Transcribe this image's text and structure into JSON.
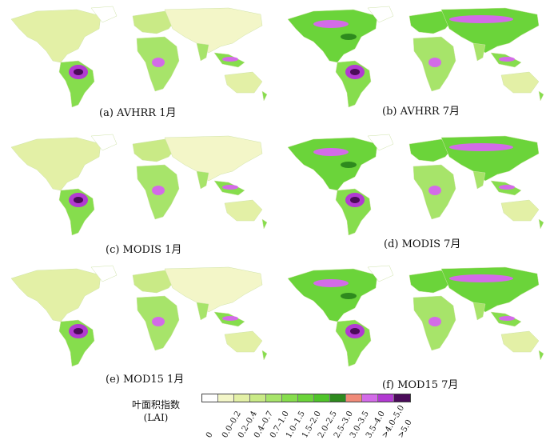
{
  "panels": [
    {
      "id": "a",
      "caption": "(a) AVHRR 1月",
      "season": "jan"
    },
    {
      "id": "b",
      "caption": "(b) AVHRR 7月",
      "season": "jul"
    },
    {
      "id": "c",
      "caption": "(c) MODIS 1月",
      "season": "jan"
    },
    {
      "id": "d",
      "caption": "(d) MODIS 7月",
      "season": "jul"
    },
    {
      "id": "e",
      "caption": "(e) MOD15 1月",
      "season": "jan"
    },
    {
      "id": "f",
      "caption": "(f) MOD15 7月",
      "season": "jul"
    }
  ],
  "legend": {
    "title_line1": "叶面积指数",
    "title_line2": "(LAI)",
    "classes": [
      {
        "label": "0",
        "color": "#ffffff"
      },
      {
        "label": "0.0–0.2",
        "color": "#f3f6c8"
      },
      {
        "label": "0.2–0.4",
        "color": "#e3f0a6"
      },
      {
        "label": "0.4–0.7",
        "color": "#c9ea86"
      },
      {
        "label": "0.7–1.0",
        "color": "#a7e46a"
      },
      {
        "label": "1.0–1.5",
        "color": "#86dd4d"
      },
      {
        "label": "1.5–2.0",
        "color": "#6bd43a"
      },
      {
        "label": "2.0–2.5",
        "color": "#4fc42a"
      },
      {
        "label": "2.5–3.0",
        "color": "#2e8a1e"
      },
      {
        "label": "3.0–3.5",
        "color": "#f08a78"
      },
      {
        "label": "3.5–4.0",
        "color": "#d36be8"
      },
      {
        "label": ">4.0–5.0",
        "color": "#b23ad2"
      },
      {
        "label": ">5.0",
        "color": "#4b0c5a"
      }
    ]
  }
}
